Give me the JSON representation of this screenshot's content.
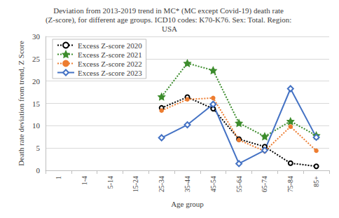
{
  "chart_data": {
    "type": "line",
    "title": "Deviation from 2013-2019 trend in MC* (MC except Covid-19) death rate (Z-score), for different age groups. ICD10 codes: K70-K76. Sex: Total. Region: USA",
    "x_label": "Age group",
    "y_label": "Death rate deviation from trend, Z Score",
    "categories": [
      "1",
      "1-4",
      "5-14",
      "15-24",
      "25-34",
      "35-44",
      "45-54",
      "55-64",
      "65-74",
      "75-84",
      "85+"
    ],
    "series": [
      {
        "name": "Excess Z-score 2020",
        "color": "#000000",
        "marker": "circle",
        "line_style": "dotted",
        "values": [
          null,
          null,
          null,
          null,
          14.0,
          16.4,
          13.8,
          7.0,
          5.3,
          1.6,
          0.9
        ]
      },
      {
        "name": "Excess Z-score 2021",
        "color": "#3c8c2c",
        "marker": "star",
        "line_style": "dotted",
        "values": [
          null,
          null,
          null,
          null,
          16.5,
          24.0,
          22.4,
          10.6,
          7.6,
          11.0,
          7.8
        ]
      },
      {
        "name": "Excess Z-score 2022",
        "color": "#ed7d31",
        "marker": "dot",
        "line_style": "dotted",
        "values": [
          null,
          null,
          null,
          null,
          13.4,
          15.9,
          16.2,
          6.8,
          4.3,
          9.8,
          4.4
        ]
      },
      {
        "name": "Excess Z-score 2023",
        "color": "#4472c4",
        "marker": "diamond",
        "line_style": "solid",
        "values": [
          null,
          null,
          null,
          null,
          7.3,
          10.2,
          14.8,
          1.5,
          4.5,
          18.3,
          7.4
        ]
      }
    ],
    "ylim": [
      0,
      30
    ],
    "yticks": [
      0,
      5,
      10,
      15,
      20,
      25,
      30
    ],
    "grid": true,
    "legend": "upper left"
  }
}
